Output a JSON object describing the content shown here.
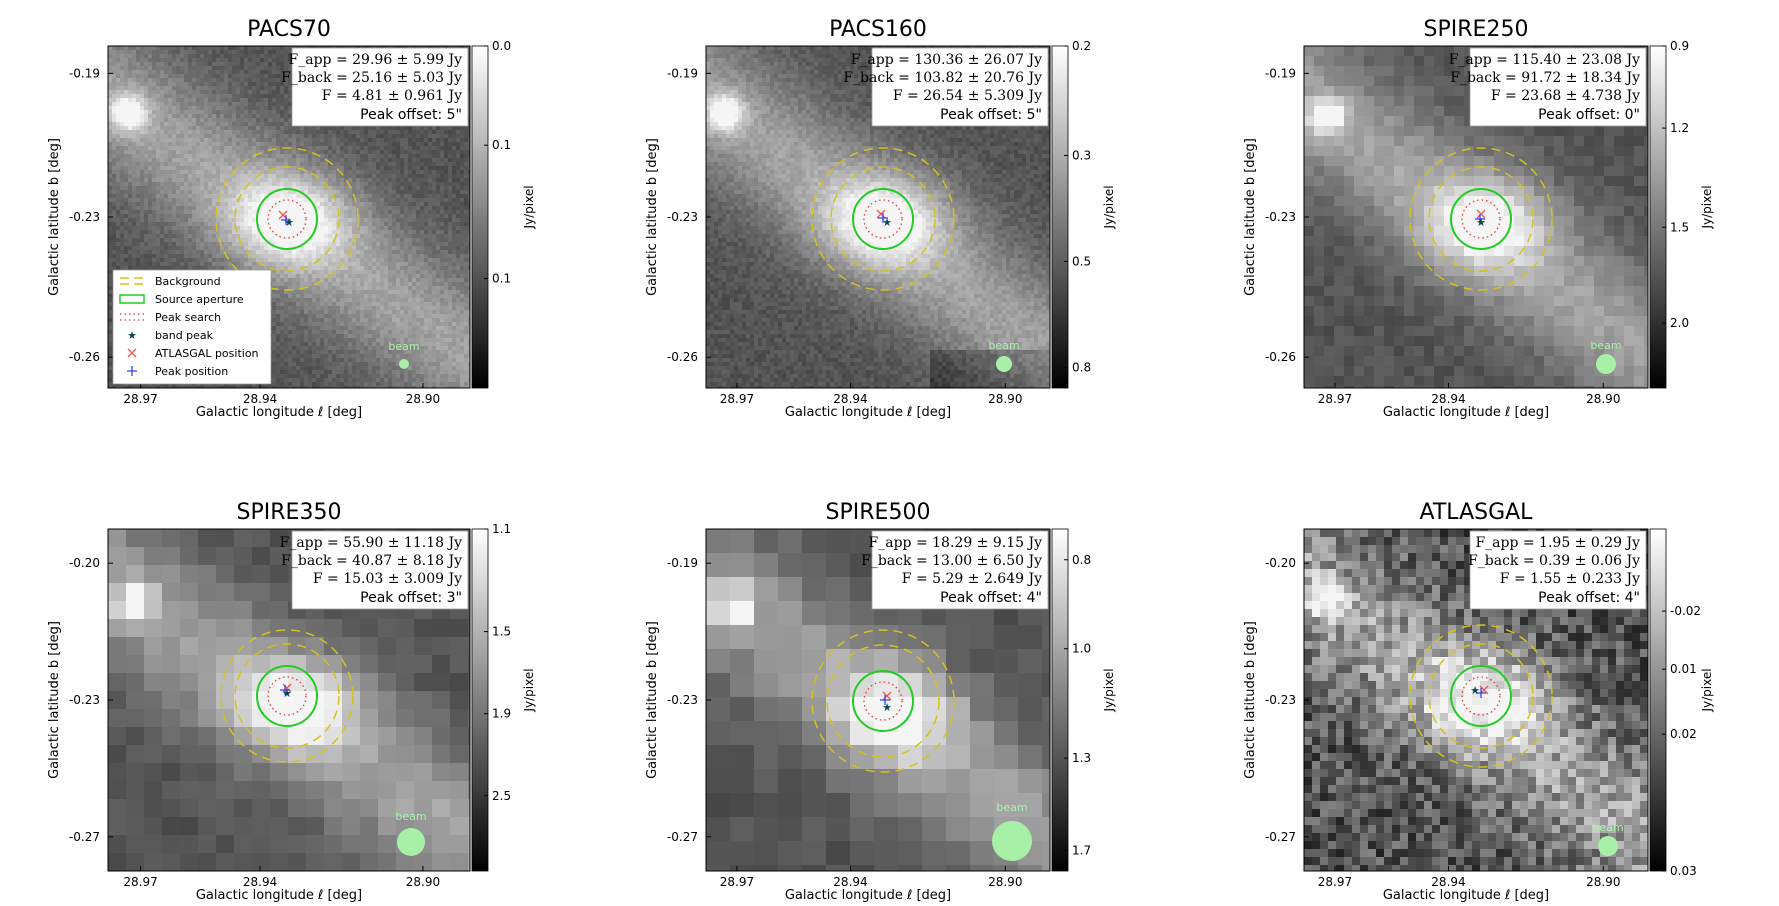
{
  "colors": {
    "background_annulus": "#d4c21a",
    "source_aperture": "#22cc22",
    "peak_search": "#e23b3b",
    "band_peak": "#0b4a4a",
    "atlasgal_position": "#ee5555",
    "peak_position": "#3344ee",
    "beam": "#a8f0a8"
  },
  "chart_data": [
    {
      "type": "heatmap",
      "title": "PACS70",
      "xlabel": "Galactic longitude ℓ [deg]",
      "ylabel": "Galactic latitude b [deg]",
      "xticks": [
        "28.97",
        "28.94",
        "28.90"
      ],
      "yticks": [
        "-0.19",
        "-0.23",
        "-0.26"
      ],
      "colorbar_label": "Jy/pixel",
      "colorbar_ticks": [
        "0.1",
        "0.1",
        "0.0"
      ],
      "flux_lines": [
        "F_app = 29.96 ± 5.99 Jy",
        "F_back = 25.16 ± 5.03 Jy",
        "F = 4.81 ± 0.961 Jy"
      ],
      "peak_offset": "Peak offset: 5\"",
      "beam_label": "beam",
      "legend": {
        "placement": "lower-left",
        "entries": [
          "Background",
          "Source aperture",
          "Peak search",
          "band peak",
          "ATLASGAL position",
          "Peak position"
        ]
      }
    },
    {
      "type": "heatmap",
      "title": "PACS160",
      "xlabel": "Galactic longitude ℓ [deg]",
      "ylabel": "Galactic latitude b [deg]",
      "xticks": [
        "28.97",
        "28.94",
        "28.90"
      ],
      "yticks": [
        "-0.19",
        "-0.23",
        "-0.26"
      ],
      "colorbar_label": "Jy/pixel",
      "colorbar_ticks": [
        "0.8",
        "0.5",
        "0.3",
        "0.2"
      ],
      "flux_lines": [
        "F_app = 130.36 ± 26.07 Jy",
        "F_back = 103.82 ± 20.76 Jy",
        "F = 26.54 ± 5.309 Jy"
      ],
      "peak_offset": "Peak offset: 5\"",
      "beam_label": "beam"
    },
    {
      "type": "heatmap",
      "title": "SPIRE250",
      "xlabel": "Galactic longitude ℓ [deg]",
      "ylabel": "Galactic latitude b [deg]",
      "xticks": [
        "28.97",
        "28.94",
        "28.90"
      ],
      "yticks": [
        "-0.19",
        "-0.23",
        "-0.26"
      ],
      "colorbar_label": "Jy/pixel",
      "colorbar_ticks": [
        "2.0",
        "1.5",
        "1.2",
        "0.9"
      ],
      "flux_lines": [
        "F_app = 115.40 ± 23.08 Jy",
        "F_back = 91.72 ± 18.34 Jy",
        "F = 23.68 ± 4.738 Jy"
      ],
      "peak_offset": "Peak offset: 0\"",
      "beam_label": "beam"
    },
    {
      "type": "heatmap",
      "title": "SPIRE350",
      "xlabel": "Galactic longitude ℓ [deg]",
      "ylabel": "Galactic latitude b [deg]",
      "xticks": [
        "28.97",
        "28.94",
        "28.90"
      ],
      "yticks": [
        "-0.20",
        "-0.23",
        "-0.27"
      ],
      "colorbar_label": "Jy/pixel",
      "colorbar_ticks": [
        "2.5",
        "1.9",
        "1.5",
        "1.1"
      ],
      "flux_lines": [
        "F_app = 55.90 ± 11.18 Jy",
        "F_back = 40.87 ± 8.18 Jy",
        "F = 15.03 ± 3.009 Jy"
      ],
      "peak_offset": "Peak offset: 3\"",
      "beam_label": "beam"
    },
    {
      "type": "heatmap",
      "title": "SPIRE500",
      "xlabel": "Galactic longitude ℓ [deg]",
      "ylabel": "Galactic latitude b [deg]",
      "xticks": [
        "28.97",
        "28.94",
        "28.90"
      ],
      "yticks": [
        "-0.19",
        "-0.23",
        "-0.27"
      ],
      "colorbar_label": "Jy/pixel",
      "colorbar_ticks": [
        "1.7",
        "1.3",
        "1.0",
        "0.8"
      ],
      "flux_lines": [
        "F_app = 18.29 ± 9.15 Jy",
        "F_back = 13.00 ± 6.50 Jy",
        "F = 5.29 ± 2.649 Jy"
      ],
      "peak_offset": "Peak offset: 4\"",
      "beam_label": "beam"
    },
    {
      "type": "heatmap",
      "title": "ATLASGAL",
      "xlabel": "Galactic longitude ℓ [deg]",
      "ylabel": "Galactic latitude b [deg]",
      "xticks": [
        "28.97",
        "28.94",
        "28.90"
      ],
      "yticks": [
        "-0.20",
        "-0.23",
        "-0.27"
      ],
      "colorbar_label": "Jy/pixel",
      "colorbar_ticks": [
        "0.03",
        "0.02",
        "0.01",
        "-0.02"
      ],
      "flux_lines": [
        "F_app = 1.95 ± 0.29 Jy",
        "F_back = 0.39 ± 0.06 Jy",
        "F = 1.55 ± 0.233 Jy"
      ],
      "peak_offset": "Peak offset: 4\"",
      "beam_label": "beam"
    }
  ]
}
